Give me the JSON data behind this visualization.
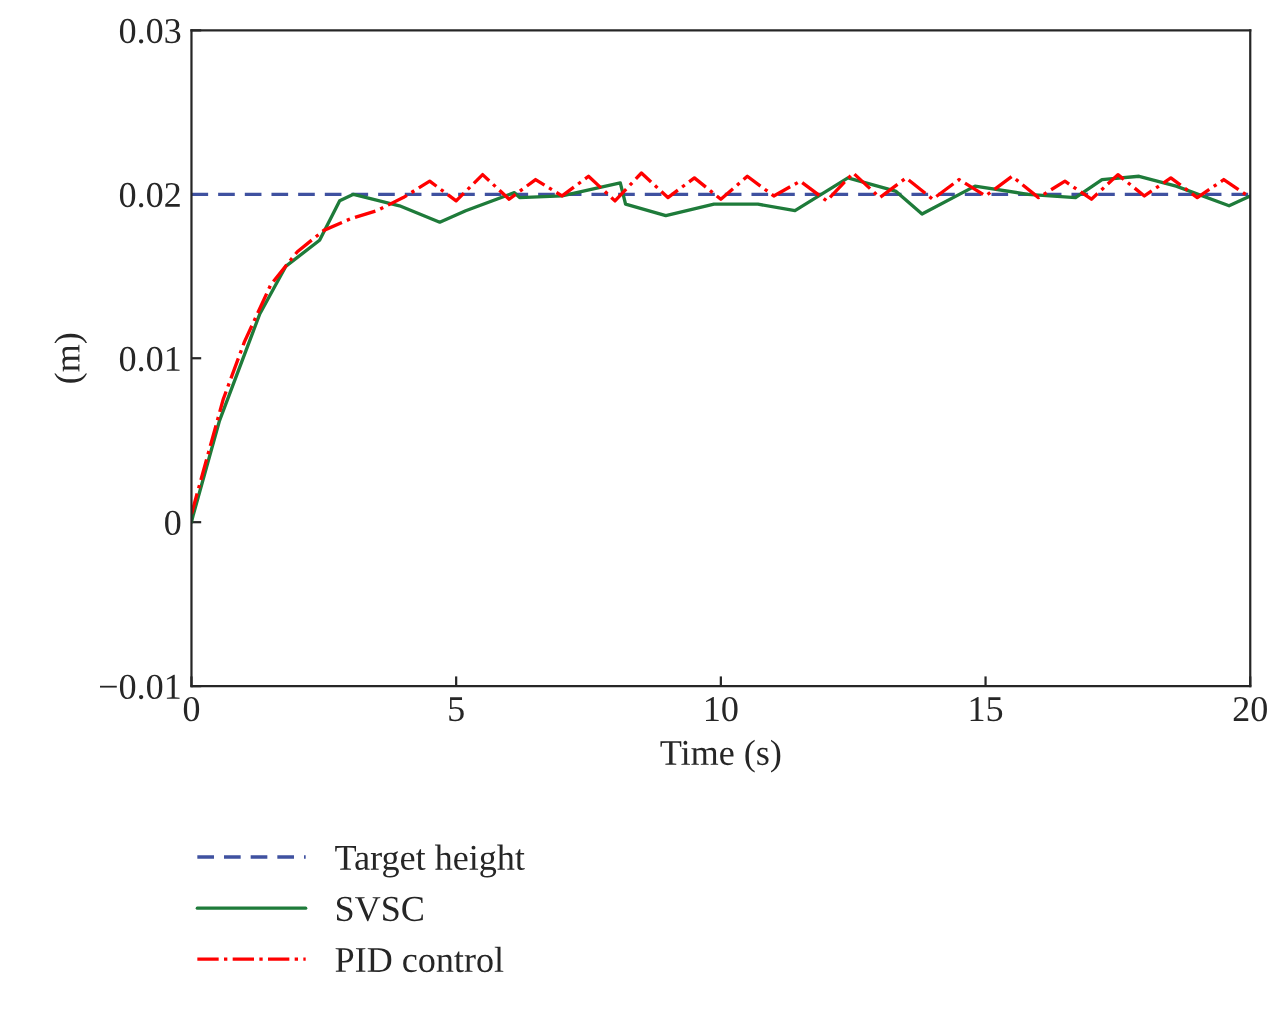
{
  "chart_data": {
    "type": "line",
    "xlabel": "Time (s)",
    "ylabel": "(m)",
    "xlim": [
      0,
      20
    ],
    "xticks": [
      0,
      5,
      10,
      15,
      20
    ],
    "ylim": [
      -0.01,
      0.03
    ],
    "yticks": [
      {
        "value": -0.01,
        "label": "−0.01"
      },
      0,
      0.01,
      0.02,
      0.03
    ],
    "grid": false,
    "legend": "bottom left",
    "series": [
      {
        "name": "Target height",
        "color": "#3f51a0",
        "line_style": "dashed",
        "x": [
          0,
          20
        ],
        "values": [
          0.02,
          0.02
        ]
      },
      {
        "name": "SVSC",
        "color": "#1e7b3a",
        "line_style": "solid",
        "x": [
          0,
          0.03,
          0.53,
          1.29,
          1.78,
          2.42,
          2.8,
          3.06,
          3.93,
          4.69,
          5.18,
          6.1,
          6.2,
          7.0,
          8.1,
          8.2,
          8.96,
          9.87,
          10.7,
          11.4,
          12.4,
          13.3,
          13.8,
          14.8,
          15.8,
          16.7,
          17.2,
          17.9,
          18.6,
          19.6,
          20
        ],
        "values": [
          0.0,
          0.0004,
          0.0062,
          0.0127,
          0.0156,
          0.0172,
          0.0196,
          0.02,
          0.0193,
          0.0183,
          0.019,
          0.0201,
          0.0198,
          0.0199,
          0.0207,
          0.0194,
          0.0187,
          0.0194,
          0.0194,
          0.019,
          0.021,
          0.0202,
          0.0188,
          0.0205,
          0.02,
          0.0198,
          0.0209,
          0.0211,
          0.0205,
          0.0193,
          0.0199
        ]
      },
      {
        "name": "PID control",
        "color": "#ff0000",
        "line_style": "dashdot",
        "x": [
          0,
          0.3,
          0.6,
          1.0,
          1.5,
          2.0,
          2.5,
          3.0,
          3.5,
          4.0,
          4.5,
          5.0,
          5.5,
          6.0,
          6.5,
          7.0,
          7.5,
          8.0,
          8.5,
          9.0,
          9.5,
          10.0,
          10.5,
          11.0,
          11.5,
          12.0,
          12.5,
          13.0,
          13.5,
          14.0,
          14.5,
          15.0,
          15.5,
          16.0,
          16.5,
          17.0,
          17.5,
          18.0,
          18.5,
          19.0,
          19.5,
          20.0
        ],
        "values": [
          0.0005,
          0.004,
          0.0075,
          0.011,
          0.0145,
          0.0165,
          0.0178,
          0.0185,
          0.019,
          0.0198,
          0.0208,
          0.0196,
          0.0212,
          0.0197,
          0.0209,
          0.0199,
          0.0211,
          0.0196,
          0.0213,
          0.0198,
          0.021,
          0.0197,
          0.0211,
          0.0199,
          0.0208,
          0.0196,
          0.0213,
          0.0198,
          0.021,
          0.0197,
          0.0209,
          0.0199,
          0.0211,
          0.0198,
          0.0208,
          0.0197,
          0.0212,
          0.0199,
          0.021,
          0.0198,
          0.0209,
          0.0198
        ]
      }
    ]
  }
}
